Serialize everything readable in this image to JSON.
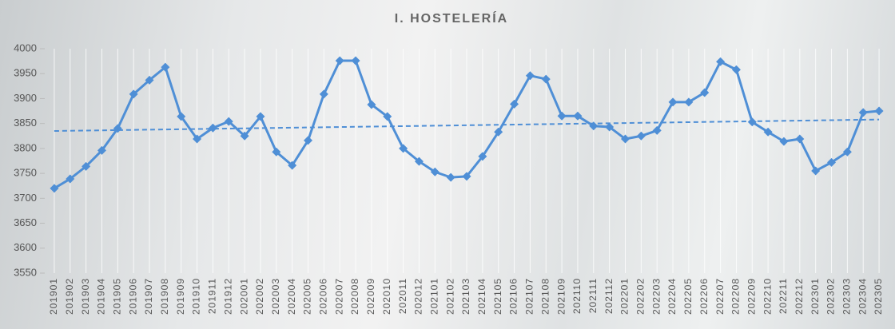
{
  "chart_data": {
    "type": "line",
    "title": "I. HOSTELERÍA",
    "categories": [
      "201901",
      "201902",
      "201903",
      "201904",
      "201905",
      "201906",
      "201907",
      "201908",
      "201909",
      "201910",
      "201911",
      "201912",
      "202001",
      "202002",
      "202003",
      "202004",
      "202005",
      "202006",
      "202007",
      "202008",
      "202009",
      "202010",
      "202011",
      "202012",
      "202101",
      "202102",
      "202103",
      "202104",
      "202105",
      "202106",
      "202107",
      "202108",
      "202109",
      "202110",
      "202111",
      "202112",
      "202201",
      "202202",
      "202203",
      "202204",
      "202205",
      "202206",
      "202207",
      "202208",
      "202209",
      "202210",
      "202211",
      "202212",
      "202301",
      "202302",
      "202303",
      "202304",
      "202305"
    ],
    "values": [
      3720,
      3739,
      3764,
      3796,
      3840,
      3909,
      3937,
      3963,
      3864,
      3819,
      3841,
      3854,
      3825,
      3864,
      3793,
      3766,
      3816,
      3909,
      3976,
      3976,
      3888,
      3864,
      3800,
      3774,
      3753,
      3742,
      3744,
      3784,
      3833,
      3889,
      3946,
      3939,
      3865,
      3865,
      3845,
      3843,
      3819,
      3825,
      3836,
      3893,
      3893,
      3912,
      3974,
      3958,
      3853,
      3833,
      3814,
      3819,
      3755,
      3772,
      3793,
      3872,
      3875
    ],
    "color": "#4f8fd6",
    "trendline": {
      "start": 3835,
      "end": 3858,
      "color": "#4f8fd6"
    },
    "ylim": [
      3550,
      4000
    ],
    "yticks": [
      3550,
      3600,
      3650,
      3700,
      3750,
      3800,
      3850,
      3900,
      3950,
      4000
    ],
    "grid": true
  }
}
